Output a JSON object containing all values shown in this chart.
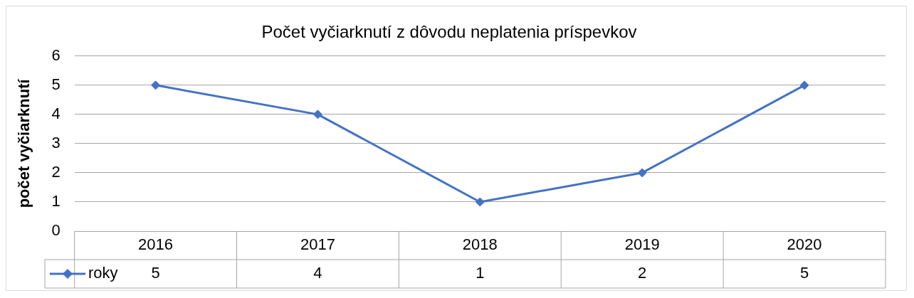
{
  "chart_data": {
    "type": "line",
    "title": "Počet vyčiarknutí z dôvodu neplatenia príspevkov",
    "ylabel": "počet vyčiarknutí",
    "categories": [
      "2016",
      "2017",
      "2018",
      "2019",
      "2020"
    ],
    "series": [
      {
        "name": "roky",
        "color": "#4472c4",
        "values": [
          5,
          4,
          1,
          2,
          5
        ]
      }
    ],
    "ylim": [
      0,
      6
    ],
    "yticks": [
      0,
      1,
      2,
      3,
      4,
      5,
      6
    ],
    "grid": "y",
    "legend": "bottom",
    "marker": "diamond",
    "line_style": "solid",
    "data_labels": true
  }
}
